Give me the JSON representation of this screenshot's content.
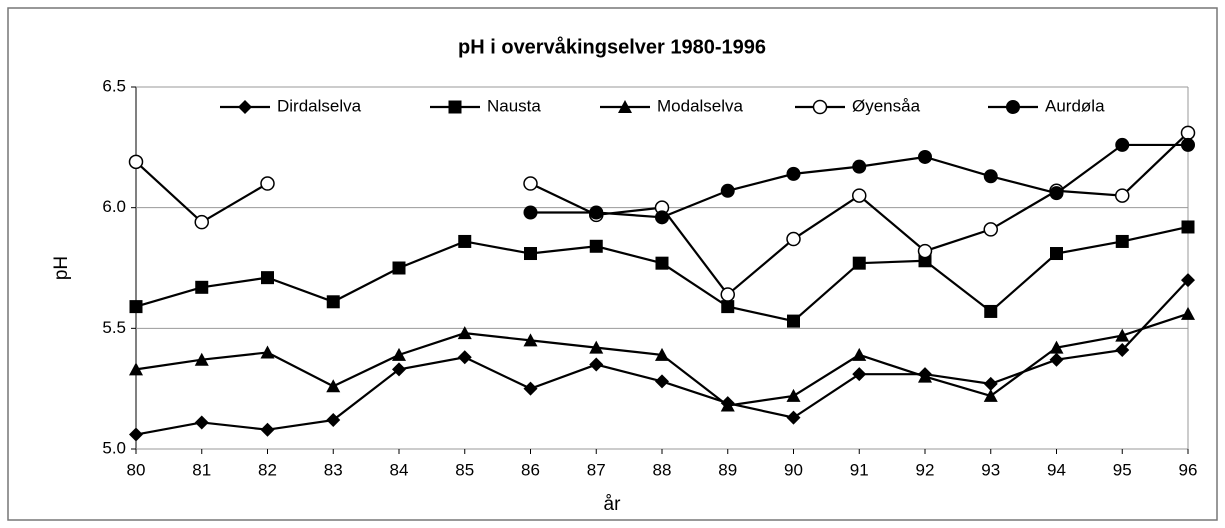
{
  "chart_data": {
    "type": "line",
    "title": "pH i overvåkingselver 1980-1996",
    "x_label": "år",
    "y_label": "pH",
    "categories": [
      "80",
      "81",
      "82",
      "83",
      "84",
      "85",
      "86",
      "87",
      "88",
      "89",
      "90",
      "91",
      "92",
      "93",
      "94",
      "95",
      "96"
    ],
    "ylim": [
      5.0,
      6.5
    ],
    "yticks": [
      {
        "value": 5.0,
        "label": "5.0"
      },
      5.5,
      {
        "value": 6.0,
        "label": "6.0"
      },
      6.5
    ],
    "grid": true,
    "legend": "top",
    "series": [
      {
        "name": "Dirdalselva",
        "color": "#000000",
        "marker": "diamond",
        "values": [
          5.06,
          5.11,
          5.08,
          5.12,
          5.33,
          5.38,
          5.25,
          5.35,
          5.28,
          5.19,
          5.13,
          5.31,
          5.31,
          5.27,
          5.37,
          5.41,
          5.7
        ]
      },
      {
        "name": "Nausta",
        "color": "#000000",
        "marker": "square",
        "values": [
          5.59,
          5.67,
          5.71,
          5.61,
          5.75,
          5.86,
          5.81,
          5.84,
          5.77,
          5.59,
          5.53,
          5.77,
          5.78,
          5.57,
          5.81,
          5.86,
          5.92
        ]
      },
      {
        "name": "Modalselva",
        "color": "#000000",
        "marker": "triangle",
        "values": [
          5.33,
          5.37,
          5.4,
          5.26,
          5.39,
          5.48,
          5.45,
          5.42,
          5.39,
          5.18,
          5.22,
          5.39,
          5.3,
          5.22,
          5.42,
          5.47,
          5.56
        ]
      },
      {
        "name": "Øyensåa",
        "color": "#000000",
        "marker": "circle-open",
        "values": [
          6.19,
          5.94,
          6.1,
          null,
          null,
          null,
          6.1,
          5.97,
          6.0,
          5.64,
          5.87,
          6.05,
          5.82,
          5.91,
          6.07,
          6.05,
          6.31
        ]
      },
      {
        "name": "Aurdøla",
        "color": "#000000",
        "marker": "circle",
        "values": [
          null,
          null,
          null,
          null,
          null,
          null,
          5.98,
          5.98,
          5.96,
          6.07,
          6.14,
          6.17,
          6.21,
          6.13,
          6.06,
          6.26,
          6.26
        ]
      }
    ]
  }
}
